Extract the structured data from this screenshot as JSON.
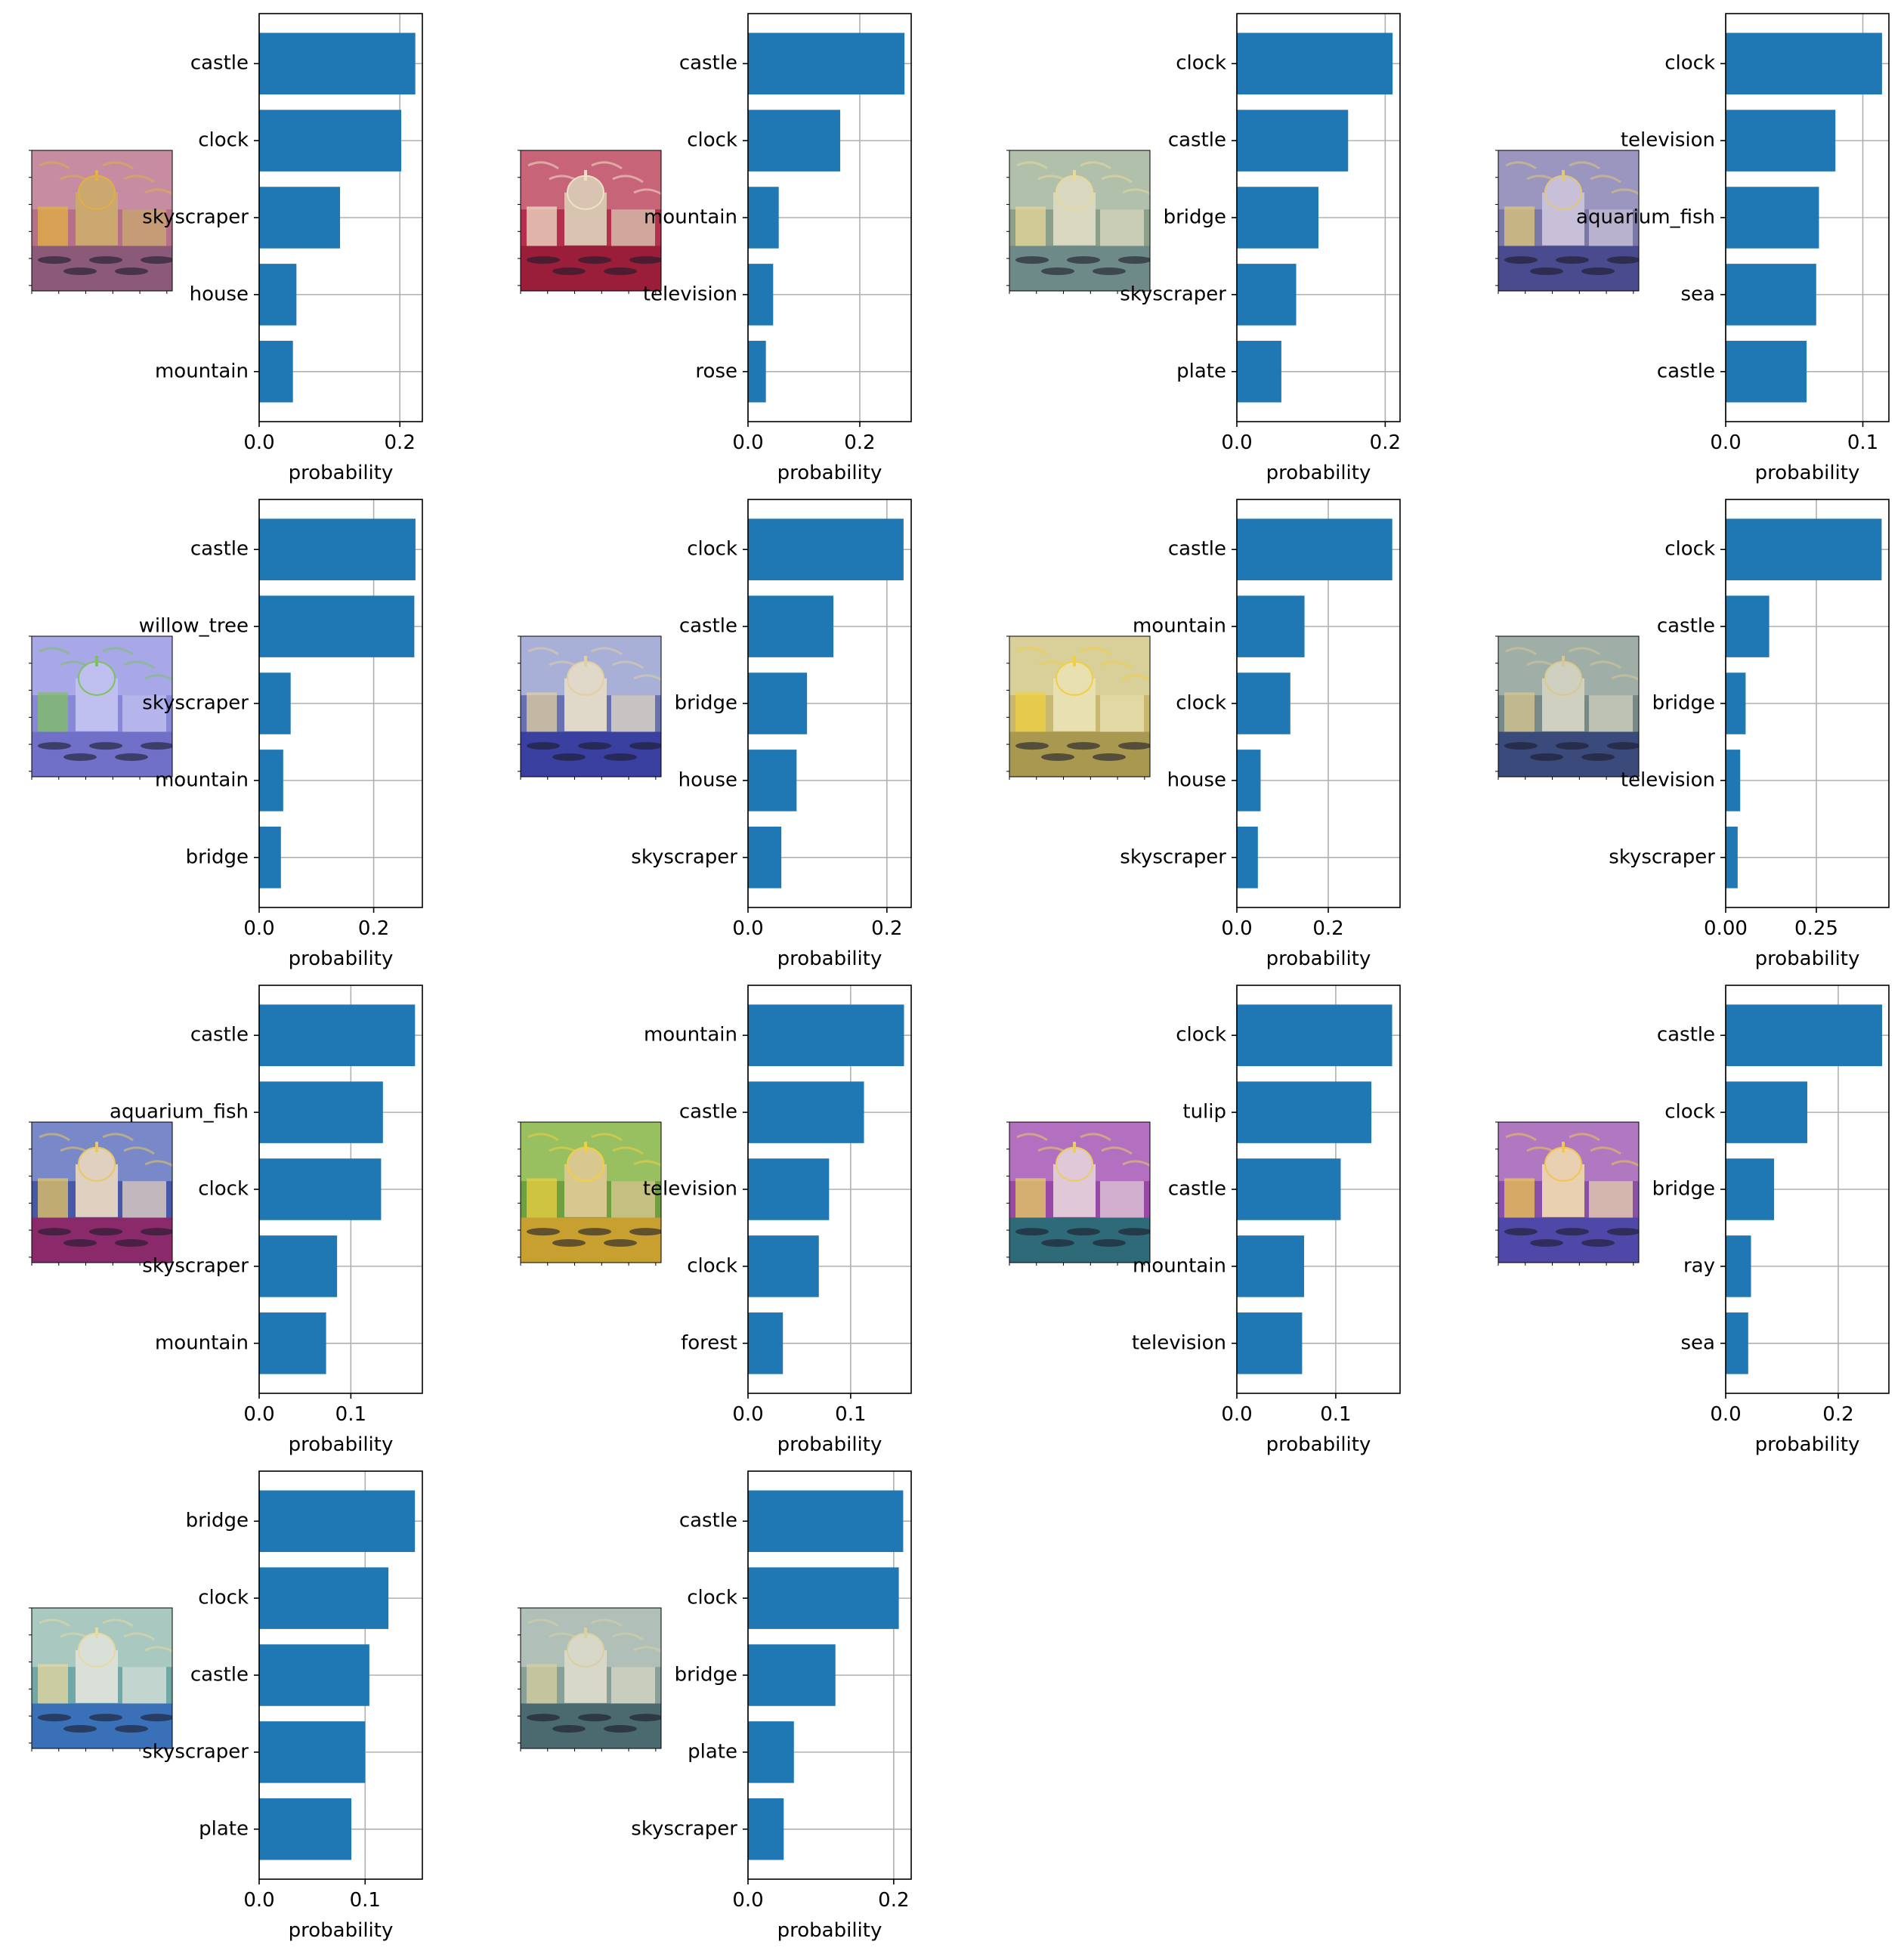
{
  "colors": {
    "bar": "#1f77b4",
    "grid": "#b0b0b0",
    "axis": "#000000",
    "background": "#ffffff"
  },
  "icons": {
    "thumbnail": "stylized-venice-canal-painting-icon"
  },
  "chart_data": [
    {
      "type": "bar",
      "orientation": "horizontal",
      "categories": [
        "castle",
        "clock",
        "skyscraper",
        "house",
        "mountain"
      ],
      "values": [
        0.222,
        0.202,
        0.115,
        0.053,
        0.048
      ],
      "xlim": [
        0,
        0.232
      ],
      "xticks": [
        0.0,
        0.2
      ],
      "xtick_labels": [
        "0.0",
        "0.2"
      ],
      "xlabel": "probability",
      "grid": true,
      "thumbnail": {
        "bg": "#b6708a",
        "sky": "#c68ca2",
        "accent": "#e2b040",
        "water": "#8a5a78",
        "dome": "#caa870"
      }
    },
    {
      "type": "bar",
      "orientation": "horizontal",
      "categories": [
        "castle",
        "clock",
        "mountain",
        "television",
        "rose"
      ],
      "values": [
        0.28,
        0.165,
        0.055,
        0.045,
        0.032
      ],
      "xlim": [
        0,
        0.292
      ],
      "xticks": [
        0.0,
        0.2
      ],
      "xtick_labels": [
        "0.0",
        "0.2"
      ],
      "xlabel": "probability",
      "grid": true,
      "thumbnail": {
        "bg": "#b4304c",
        "sky": "#c86478",
        "accent": "#f0e0c8",
        "water": "#9a1e3a",
        "dome": "#d8c4b0"
      }
    },
    {
      "type": "bar",
      "orientation": "horizontal",
      "categories": [
        "clock",
        "castle",
        "bridge",
        "skyscraper",
        "plate"
      ],
      "values": [
        0.21,
        0.15,
        0.11,
        0.08,
        0.06
      ],
      "xlim": [
        0,
        0.22
      ],
      "xticks": [
        0.0,
        0.2
      ],
      "xtick_labels": [
        "0.0",
        "0.2"
      ],
      "xlabel": "probability",
      "grid": true,
      "thumbnail": {
        "bg": "#8aa088",
        "sky": "#b0c0aa",
        "accent": "#e8d89a",
        "water": "#6e8a88",
        "dome": "#d8d8c0"
      }
    },
    {
      "type": "bar",
      "orientation": "horizontal",
      "categories": [
        "clock",
        "television",
        "aquarium_fish",
        "sea",
        "castle"
      ],
      "values": [
        0.114,
        0.08,
        0.068,
        0.066,
        0.059
      ],
      "xlim": [
        0,
        0.119
      ],
      "xticks": [
        0.0,
        0.1
      ],
      "xtick_labels": [
        "0.0",
        "0.1"
      ],
      "xlabel": "probability",
      "grid": true,
      "thumbnail": {
        "bg": "#7a78a8",
        "sky": "#9a96c0",
        "accent": "#e0c878",
        "water": "#4a4a8e",
        "dome": "#c8c0d8"
      }
    },
    {
      "type": "bar",
      "orientation": "horizontal",
      "categories": [
        "castle",
        "willow_tree",
        "skyscraper",
        "mountain",
        "bridge"
      ],
      "values": [
        0.273,
        0.271,
        0.055,
        0.042,
        0.038
      ],
      "xlim": [
        0,
        0.285
      ],
      "xticks": [
        0.0,
        0.2
      ],
      "xtick_labels": [
        "0.0",
        "0.2"
      ],
      "xlabel": "probability",
      "grid": true,
      "thumbnail": {
        "bg": "#8888d8",
        "sky": "#a8a8e8",
        "accent": "#80c060",
        "water": "#7070c8",
        "dome": "#c0c0f0"
      }
    },
    {
      "type": "bar",
      "orientation": "horizontal",
      "categories": [
        "clock",
        "castle",
        "bridge",
        "house",
        "skyscraper"
      ],
      "values": [
        0.224,
        0.123,
        0.085,
        0.07,
        0.048
      ],
      "xlim": [
        0,
        0.235
      ],
      "xticks": [
        0.0,
        0.2
      ],
      "xtick_labels": [
        "0.0",
        "0.2"
      ],
      "xlabel": "probability",
      "grid": true,
      "thumbnail": {
        "bg": "#6870b0",
        "sky": "#a8b0d8",
        "accent": "#e0d0a0",
        "water": "#3a40a0",
        "dome": "#e0d8c8"
      }
    },
    {
      "type": "bar",
      "orientation": "horizontal",
      "categories": [
        "castle",
        "mountain",
        "clock",
        "house",
        "skyscraper"
      ],
      "values": [
        0.34,
        0.148,
        0.117,
        0.052,
        0.046
      ],
      "xlim": [
        0,
        0.357
      ],
      "xticks": [
        0.0,
        0.2
      ],
      "xtick_labels": [
        "0.0",
        "0.2"
      ],
      "xlabel": "probability",
      "grid": true,
      "thumbnail": {
        "bg": "#c8b870",
        "sky": "#d8d098",
        "accent": "#f0d040",
        "water": "#a89850",
        "dome": "#e8e0b0"
      }
    },
    {
      "type": "bar",
      "orientation": "horizontal",
      "categories": [
        "clock",
        "castle",
        "bridge",
        "television",
        "skyscraper"
      ],
      "values": [
        0.43,
        0.12,
        0.055,
        0.04,
        0.033
      ],
      "xlim": [
        0,
        0.45
      ],
      "xticks": [
        0.0,
        0.25
      ],
      "xtick_labels": [
        "0.00",
        "0.25"
      ],
      "xlabel": "probability",
      "grid": true,
      "thumbnail": {
        "bg": "#788a88",
        "sky": "#a0aea8",
        "accent": "#d8c890",
        "water": "#3a4a7a",
        "dome": "#d0d0c0"
      }
    },
    {
      "type": "bar",
      "orientation": "horizontal",
      "categories": [
        "castle",
        "aquarium_fish",
        "clock",
        "skyscraper",
        "mountain"
      ],
      "values": [
        0.17,
        0.135,
        0.133,
        0.085,
        0.073
      ],
      "xlim": [
        0,
        0.178
      ],
      "xticks": [
        0.0,
        0.1
      ],
      "xtick_labels": [
        "0.0",
        "0.1"
      ],
      "xlabel": "probability",
      "grid": true,
      "thumbnail": {
        "bg": "#4858a8",
        "sky": "#7888c8",
        "accent": "#e8c860",
        "water": "#8a2a6a",
        "dome": "#e0d0c0"
      }
    },
    {
      "type": "bar",
      "orientation": "horizontal",
      "categories": [
        "mountain",
        "castle",
        "television",
        "clock",
        "forest"
      ],
      "values": [
        0.152,
        0.113,
        0.079,
        0.069,
        0.034
      ],
      "xlim": [
        0,
        0.159
      ],
      "xticks": [
        0.0,
        0.1
      ],
      "xtick_labels": [
        "0.0",
        "0.1"
      ],
      "xlabel": "probability",
      "grid": true,
      "thumbnail": {
        "bg": "#6ea040",
        "sky": "#98c060",
        "accent": "#f0d040",
        "water": "#c8a030",
        "dome": "#d8c890"
      }
    },
    {
      "type": "bar",
      "orientation": "horizontal",
      "categories": [
        "clock",
        "tulip",
        "castle",
        "mountain",
        "television"
      ],
      "values": [
        0.157,
        0.136,
        0.105,
        0.068,
        0.066
      ],
      "xlim": [
        0,
        0.165
      ],
      "xticks": [
        0.0,
        0.1
      ],
      "xtick_labels": [
        "0.0",
        "0.1"
      ],
      "xlabel": "probability",
      "grid": true,
      "thumbnail": {
        "bg": "#9a48a8",
        "sky": "#b470c0",
        "accent": "#e8d060",
        "water": "#2e6a78",
        "dome": "#e0c8d8"
      }
    },
    {
      "type": "bar",
      "orientation": "horizontal",
      "categories": [
        "castle",
        "clock",
        "bridge",
        "ray",
        "sea"
      ],
      "values": [
        0.278,
        0.145,
        0.086,
        0.045,
        0.04
      ],
      "xlim": [
        0,
        0.29
      ],
      "xticks": [
        0.0,
        0.2
      ],
      "xtick_labels": [
        "0.0",
        "0.2"
      ],
      "xlabel": "probability",
      "grid": true,
      "thumbnail": {
        "bg": "#8850a8",
        "sky": "#b078c0",
        "accent": "#f0c850",
        "water": "#5048a8",
        "dome": "#e8d0b0"
      }
    },
    {
      "type": "bar",
      "orientation": "horizontal",
      "categories": [
        "bridge",
        "clock",
        "castle",
        "skyscraper",
        "plate"
      ],
      "values": [
        0.147,
        0.122,
        0.104,
        0.1,
        0.087
      ],
      "xlim": [
        0,
        0.154
      ],
      "xticks": [
        0.0,
        0.1
      ],
      "xtick_labels": [
        "0.0",
        "0.1"
      ],
      "xlabel": "probability",
      "grid": true,
      "thumbnail": {
        "bg": "#70a8a8",
        "sky": "#a8c8c0",
        "accent": "#e8d8a0",
        "water": "#3a70b8",
        "dome": "#d8e0d8"
      }
    },
    {
      "type": "bar",
      "orientation": "horizontal",
      "categories": [
        "castle",
        "clock",
        "bridge",
        "plate",
        "skyscraper"
      ],
      "values": [
        0.213,
        0.207,
        0.12,
        0.063,
        0.049
      ],
      "xlim": [
        0,
        0.224
      ],
      "xticks": [
        0.0,
        0.2
      ],
      "xtick_labels": [
        "0.0",
        "0.2"
      ],
      "xlabel": "probability",
      "grid": true,
      "thumbnail": {
        "bg": "#88a098",
        "sky": "#b0c0b8",
        "accent": "#d8d0a0",
        "water": "#4a6a70",
        "dome": "#d8d8c8"
      }
    }
  ]
}
